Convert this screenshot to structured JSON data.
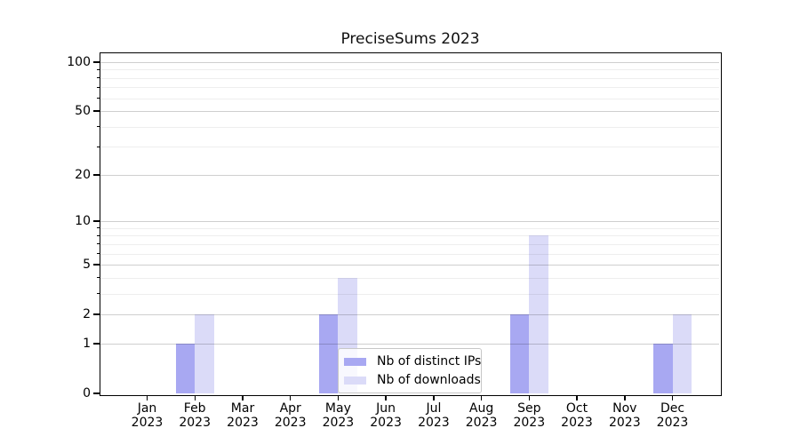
{
  "figure": {
    "title": "PreciseSums 2023"
  },
  "chart_data": {
    "type": "bar",
    "title": "PreciseSums 2023",
    "year": "2023",
    "categories": [
      "Jan",
      "Feb",
      "Mar",
      "Apr",
      "May",
      "Jun",
      "Jul",
      "Aug",
      "Sep",
      "Oct",
      "Nov",
      "Dec"
    ],
    "x_tick_label_format": "Mon\n2023",
    "series": [
      {
        "name": "Nb of distinct IPs",
        "color": "#a8a8f2",
        "values": [
          0,
          1,
          0,
          0,
          2,
          0,
          0,
          0,
          2,
          0,
          0,
          1
        ]
      },
      {
        "name": "Nb of downloads",
        "color": "#dbdbf8",
        "values": [
          0,
          2,
          0,
          0,
          4,
          0,
          0,
          0,
          8,
          0,
          0,
          2
        ]
      }
    ],
    "y_scale": "log1p",
    "y_major_ticks": [
      0,
      1,
      2,
      5,
      10,
      20,
      50,
      100
    ],
    "y_minor_ticks": [
      3,
      4,
      6,
      7,
      8,
      9,
      30,
      40,
      60,
      70,
      80,
      90
    ],
    "ylim": [
      0,
      113
    ],
    "xlabel": "",
    "ylabel": "",
    "grid": "horizontal, major and minor, light gray",
    "legend": {
      "location": "inside axes, lower center",
      "items": [
        "Nb of distinct IPs",
        "Nb of downloads"
      ]
    }
  }
}
